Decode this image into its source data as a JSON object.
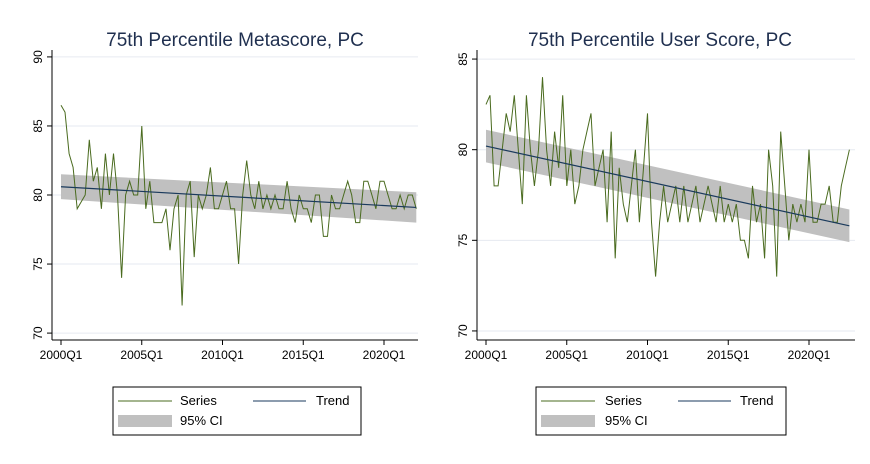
{
  "chart_data": [
    {
      "type": "line",
      "title": "75th Percentile Metascore, PC",
      "xlabel": "",
      "ylabel": "",
      "ylim": [
        69.5,
        90.5
      ],
      "yticks": [
        "70",
        "75",
        "80",
        "85",
        "90"
      ],
      "xticks": [
        "2000Q1",
        "2005Q1",
        "2010Q1",
        "2015Q1",
        "2020Q1"
      ],
      "xrange": [
        "2000Q1",
        "2021Q4"
      ],
      "grid": true,
      "legend": {
        "position": "bottom",
        "items": [
          "Series",
          "Trend",
          "95% CI"
        ]
      },
      "colors": {
        "series": "#4a6b1f",
        "trend": "#1a3a5c",
        "ci": "#c0c0c0",
        "title": "#1f2f4f",
        "grid": "#e6eaf0"
      },
      "series": [
        {
          "name": "Series",
          "values": [
            86.5,
            86,
            83,
            82,
            79,
            79.5,
            80,
            84,
            81,
            82,
            79,
            83,
            80,
            83,
            80,
            74,
            80,
            81,
            80,
            80,
            85,
            79,
            81,
            78,
            78,
            78,
            79,
            76,
            79,
            80,
            72,
            80,
            81,
            75.5,
            80,
            79,
            80,
            82,
            79,
            79,
            80,
            81,
            79,
            79,
            75,
            80,
            82.5,
            80,
            79,
            81,
            79,
            80,
            79,
            80,
            79,
            79,
            81,
            79,
            78,
            80,
            79,
            79,
            78,
            80,
            80,
            77,
            77,
            80,
            79,
            79,
            80,
            81,
            80,
            78,
            78,
            81,
            81,
            80,
            79,
            81,
            81,
            80,
            79,
            79,
            80,
            79,
            80,
            80,
            79
          ]
        },
        {
          "name": "Trend",
          "start": 80.6,
          "end": 79.1
        },
        {
          "name": "95% CI",
          "start": [
            79.7,
            81.5
          ],
          "end": [
            78.0,
            80.2
          ]
        }
      ]
    },
    {
      "type": "line",
      "title": "75th Percentile User Score, PC",
      "xlabel": "",
      "ylabel": "",
      "ylim": [
        69.5,
        85.5
      ],
      "yticks": [
        "70",
        "75",
        "80",
        "85"
      ],
      "xticks": [
        "2000Q1",
        "2005Q1",
        "2010Q1",
        "2015Q1",
        "2020Q1"
      ],
      "xrange": [
        "2000Q1",
        "2021Q4"
      ],
      "grid": true,
      "legend": {
        "position": "bottom",
        "items": [
          "Series",
          "95% CI",
          "Trend"
        ]
      },
      "colors": {
        "series": "#4a6b1f",
        "trend": "#1a3a5c",
        "ci": "#c0c0c0",
        "title": "#1f2f4f",
        "grid": "#e6eaf0"
      },
      "series": [
        {
          "name": "Series",
          "values": [
            82.5,
            83,
            78,
            78,
            80,
            82,
            81,
            83,
            80,
            77,
            83,
            80,
            78,
            80,
            84,
            80,
            78,
            81,
            79,
            83,
            78,
            80,
            77,
            78,
            80,
            81,
            82,
            78,
            79,
            80,
            76,
            81,
            74,
            79,
            77,
            76,
            78,
            80,
            76,
            79,
            82,
            76,
            73,
            76,
            78,
            76,
            77,
            78,
            76,
            78,
            76,
            77,
            78,
            76,
            77,
            78,
            77,
            76,
            78,
            76,
            77,
            76,
            77,
            75,
            75,
            74,
            78,
            76,
            77,
            74,
            80,
            78,
            73,
            81,
            78,
            75,
            77,
            76,
            77,
            76,
            80,
            76,
            76,
            77,
            77,
            78,
            76,
            76,
            78,
            79,
            80
          ]
        },
        {
          "name": "Trend",
          "start": 80.2,
          "end": 75.8
        },
        {
          "name": "95% CI",
          "start": [
            79.3,
            81.1
          ],
          "end": [
            74.9,
            76.7
          ]
        }
      ]
    }
  ]
}
